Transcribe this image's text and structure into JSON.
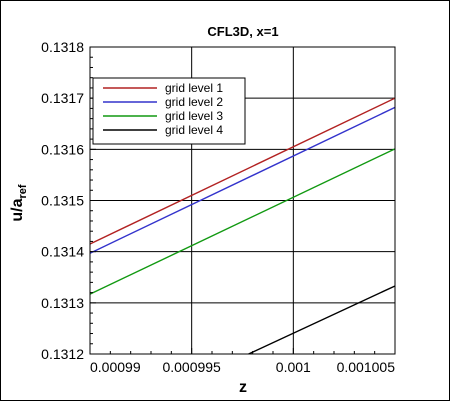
{
  "chart_data": {
    "type": "line",
    "title": "CFL3D, x=1",
    "xlabel": "z",
    "ylabel": {
      "main": "u/a",
      "sub": "ref"
    },
    "xlim": [
      0.00099,
      0.001005
    ],
    "ylim": [
      0.1312,
      0.1318
    ],
    "xticks": [
      0.00099,
      0.000995,
      0.001,
      0.001005
    ],
    "xtick_labels": [
      "0.00099",
      "0.000995",
      "0.001",
      "0.001005"
    ],
    "yticks": [
      0.1312,
      0.1313,
      0.1314,
      0.1315,
      0.1316,
      0.1317,
      0.1318
    ],
    "ytick_labels": [
      "0.1312",
      "0.1313",
      "0.1314",
      "0.1315",
      "0.1316",
      "0.1317",
      "0.1318"
    ],
    "grid": true,
    "legend_position": "top-left",
    "series": [
      {
        "name": "grid level 1",
        "color": "#b22222",
        "x": [
          0.00099,
          0.001005
        ],
        "y": [
          0.131415,
          0.1317
        ]
      },
      {
        "name": "grid level 2",
        "color": "#3333cc",
        "x": [
          0.00099,
          0.001005
        ],
        "y": [
          0.131397,
          0.131682
        ]
      },
      {
        "name": "grid level 3",
        "color": "#119911",
        "x": [
          0.00099,
          0.001005
        ],
        "y": [
          0.131317,
          0.131601
        ]
      },
      {
        "name": "grid level 4",
        "color": "#000000",
        "x": [
          0.0009978,
          0.001005
        ],
        "y": [
          0.1312,
          0.131333
        ]
      }
    ]
  }
}
